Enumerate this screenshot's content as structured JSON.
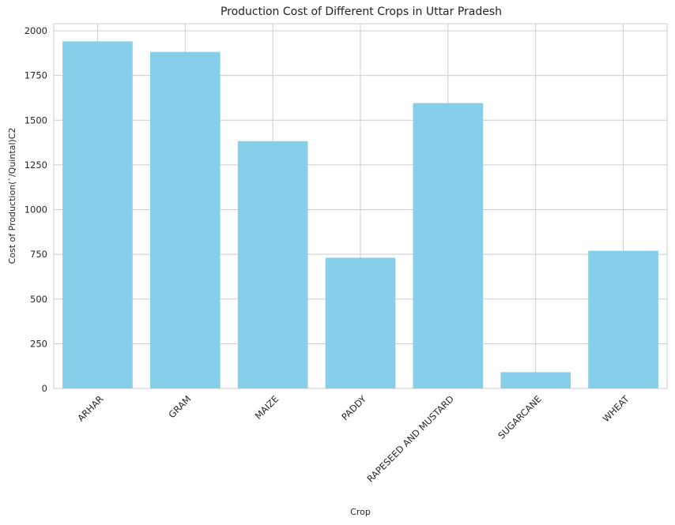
{
  "chart_data": {
    "type": "bar",
    "title": "Production Cost of Different Crops in Uttar Pradesh",
    "xlabel": "Crop",
    "ylabel": "Cost of Production(`/Quintal)C2",
    "categories": [
      "ARHAR",
      "GRAM",
      "MAIZE",
      "PADDY",
      "RAPESEED AND MUSTARD",
      "SUGARCANE",
      "WHEAT"
    ],
    "values": [
      1941,
      1882,
      1383,
      731,
      1596,
      91,
      770
    ],
    "ylim": [
      0,
      2040
    ],
    "yticks": [
      0,
      250,
      500,
      750,
      1000,
      1250,
      1500,
      1750,
      2000
    ],
    "grid": true,
    "bar_color": "#87ceeb",
    "grid_color": "#cccccc"
  }
}
